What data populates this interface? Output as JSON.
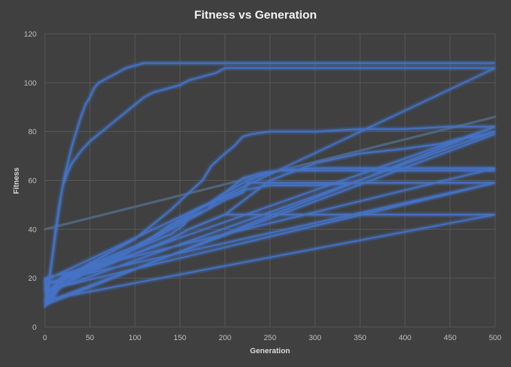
{
  "chart_data": {
    "type": "line",
    "title": "Fitness vs Generation",
    "xlabel": "Generation",
    "ylabel": "Fitness",
    "xlim": [
      0,
      500
    ],
    "ylim": [
      0,
      120
    ],
    "x_ticks": [
      0,
      50,
      100,
      150,
      200,
      250,
      300,
      350,
      400,
      450,
      500
    ],
    "y_ticks": [
      0,
      20,
      40,
      60,
      80,
      100,
      120
    ],
    "grid": true,
    "legend": "none",
    "colors": {
      "background": "#404040",
      "grid": "#595959",
      "series": "#4472c4",
      "glow": "#5b8fe8",
      "trend": "#50647a"
    },
    "trendline": {
      "x": [
        0,
        500
      ],
      "y": [
        40,
        86
      ]
    },
    "series": [
      {
        "x": [
          0,
          3,
          6,
          10,
          14,
          18,
          22,
          26,
          30,
          35,
          40,
          45,
          50,
          55,
          60,
          70,
          80,
          90,
          100,
          110,
          150,
          200,
          300,
          400,
          500
        ],
        "y": [
          8,
          13,
          22,
          33,
          44,
          54,
          62,
          68,
          74,
          80,
          86,
          91,
          94,
          98,
          100,
          102,
          104,
          106,
          107,
          108,
          108,
          108,
          108,
          108,
          108
        ]
      },
      {
        "x": [
          0,
          4,
          8,
          12,
          16,
          20,
          25,
          30,
          40,
          50,
          60,
          70,
          80,
          90,
          100,
          110,
          120,
          130,
          140,
          150,
          160,
          170,
          180,
          190,
          200,
          250,
          300,
          400,
          500
        ],
        "y": [
          10,
          18,
          28,
          40,
          50,
          58,
          63,
          67,
          72,
          76,
          79,
          82,
          85,
          88,
          91,
          94,
          96,
          97,
          98,
          99,
          101,
          102,
          103,
          104,
          106,
          106,
          106,
          106,
          106
        ]
      },
      {
        "x": [
          0,
          2,
          10,
          20,
          40,
          60,
          80,
          100,
          120,
          140,
          160,
          175,
          185,
          200,
          210,
          220,
          230,
          250,
          300,
          350,
          400,
          450,
          500
        ],
        "y": [
          20,
          9,
          15,
          20,
          24,
          28,
          32,
          36,
          42,
          48,
          55,
          60,
          66,
          71,
          74,
          78,
          79,
          80,
          80,
          81,
          81,
          82,
          82
        ]
      },
      {
        "x": [
          0,
          5,
          20,
          40,
          60,
          80,
          100,
          120,
          140,
          160,
          180,
          200,
          210,
          220,
          240,
          260,
          300,
          350,
          400,
          450,
          500
        ],
        "y": [
          20,
          12,
          19,
          23,
          27,
          30,
          33,
          36,
          40,
          44,
          48,
          55,
          58,
          61,
          63,
          64,
          65,
          65,
          65,
          65,
          65
        ]
      },
      {
        "x": [
          0,
          6,
          20,
          40,
          60,
          80,
          100,
          120,
          140,
          155,
          160,
          180,
          200,
          220,
          240,
          260,
          300,
          350,
          400,
          450,
          500
        ],
        "y": [
          18,
          15,
          20,
          23,
          26,
          29,
          32,
          35,
          38,
          42,
          46,
          50,
          55,
          59,
          62,
          64,
          64,
          64,
          64,
          64,
          64
        ]
      },
      {
        "x": [
          0,
          3,
          20,
          40,
          60,
          80,
          100,
          120,
          140,
          160,
          180,
          200,
          220,
          225,
          260,
          300,
          400,
          450,
          500
        ],
        "y": [
          17,
          14,
          21,
          24,
          27,
          30,
          33,
          37,
          41,
          45,
          48,
          52,
          55,
          59,
          59,
          59,
          59,
          59,
          59
        ]
      },
      {
        "x": [
          0,
          4,
          20,
          40,
          60,
          80,
          100,
          120,
          140,
          160,
          180,
          200,
          220,
          250,
          300,
          350,
          400,
          450,
          500
        ],
        "y": [
          16,
          12,
          20,
          22,
          25,
          28,
          32,
          37,
          42,
          46,
          50,
          53,
          56,
          58,
          58,
          59,
          59,
          59,
          59
        ]
      },
      {
        "x": [
          0,
          5,
          20,
          40,
          60,
          80,
          100,
          120,
          140,
          160,
          180,
          200,
          250,
          300,
          350,
          400,
          420,
          440,
          460,
          480,
          500
        ],
        "y": [
          15,
          10,
          18,
          21,
          24,
          27,
          30,
          33,
          36,
          40,
          43,
          46,
          60,
          67,
          71,
          73,
          74,
          75,
          77,
          78,
          80
        ]
      },
      {
        "x": [
          0,
          2,
          20,
          40,
          60,
          80,
          100,
          120,
          140,
          160,
          180,
          200,
          300,
          400,
          500
        ],
        "y": [
          19,
          11,
          17,
          21,
          24,
          27,
          30,
          33,
          36,
          40,
          43,
          46,
          46,
          46,
          46
        ]
      }
    ],
    "connectors": [
      {
        "x": [
          0,
          500
        ],
        "y": [
          19,
          106
        ]
      },
      {
        "x": [
          0,
          500
        ],
        "y": [
          17,
          82
        ]
      },
      {
        "x": [
          0,
          500
        ],
        "y": [
          14,
          80
        ]
      },
      {
        "x": [
          0,
          500
        ],
        "y": [
          10,
          79
        ]
      },
      {
        "x": [
          0,
          500
        ],
        "y": [
          20,
          65
        ]
      },
      {
        "x": [
          0,
          500
        ],
        "y": [
          18,
          59
        ]
      },
      {
        "x": [
          0,
          500
        ],
        "y": [
          15,
          59
        ]
      },
      {
        "x": [
          0,
          500
        ],
        "y": [
          11,
          46
        ]
      },
      {
        "x": [
          0,
          500
        ],
        "y": [
          9,
          82
        ]
      }
    ]
  }
}
